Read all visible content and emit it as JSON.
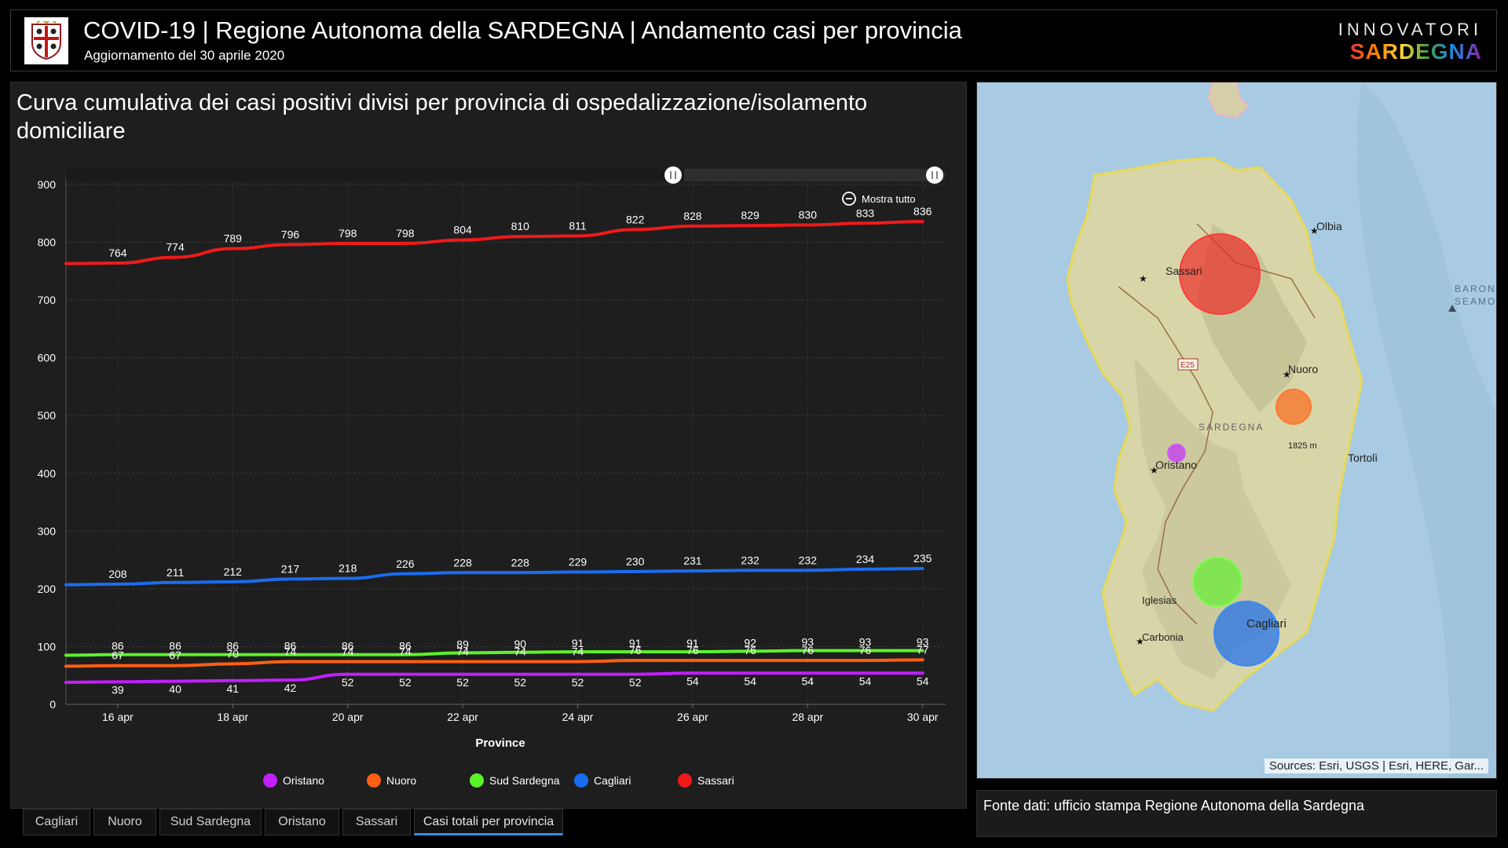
{
  "header": {
    "title": "COVID-19 | Regione Autonoma della SARDEGNA | Andamento casi per provincia",
    "subtitle": "Aggiornamento del 30 aprile 2020",
    "brand_top": "INNOVATORI",
    "brand_bottom": "SARDEGNA",
    "logo_icon": "coat-of-arms-icon"
  },
  "chart_panel": {
    "title": "Curva cumulativa dei casi positivi divisi per provincia di ospedalizzazione/isolamento domiciliare",
    "show_all_label": "Mostra tutto"
  },
  "chart_data": {
    "type": "line",
    "xlabel": "Province",
    "ylabel": "",
    "ylim": [
      0,
      900
    ],
    "yticks": [
      0,
      100,
      200,
      300,
      400,
      500,
      600,
      700,
      800,
      900
    ],
    "x_range": [
      "15 apr",
      "30 apr"
    ],
    "x": [
      "16 apr",
      "17 apr",
      "18 apr",
      "19 apr",
      "20 apr",
      "21 apr",
      "22 apr",
      "23 apr",
      "24 apr",
      "25 apr",
      "26 apr",
      "27 apr",
      "28 apr",
      "29 apr",
      "30 apr"
    ],
    "xtick_labels": [
      "16 apr",
      "18 apr",
      "20 apr",
      "22 apr",
      "24 apr",
      "26 apr",
      "28 apr",
      "30 apr"
    ],
    "grid": true,
    "legend_position": "bottom",
    "series": [
      {
        "name": "Oristano",
        "color": "#c21fff",
        "start": 38,
        "values": [
          39,
          40,
          41,
          42,
          52,
          52,
          52,
          52,
          52,
          52,
          54,
          54,
          54,
          54,
          54
        ]
      },
      {
        "name": "Nuoro",
        "color": "#ff5f13",
        "start": 66,
        "values": [
          67,
          67,
          70,
          74,
          74,
          74,
          74,
          74,
          74,
          76,
          76,
          76,
          76,
          76,
          77
        ]
      },
      {
        "name": "Sud Sardegna",
        "color": "#5bf22a",
        "start": 85,
        "values": [
          86,
          86,
          86,
          86,
          86,
          86,
          89,
          90,
          91,
          91,
          91,
          92,
          93,
          93,
          93
        ]
      },
      {
        "name": "Cagliari",
        "color": "#1a6cf0",
        "start": 207,
        "values": [
          208,
          211,
          212,
          217,
          218,
          226,
          228,
          228,
          229,
          230,
          231,
          232,
          232,
          234,
          235
        ]
      },
      {
        "name": "Sassari",
        "color": "#f01a1a",
        "start": 763,
        "values": [
          764,
          774,
          789,
          796,
          798,
          798,
          804,
          810,
          811,
          822,
          828,
          829,
          830,
          833,
          836
        ]
      }
    ]
  },
  "map": {
    "place_labels": [
      "Olbia",
      "Sassari",
      "Nuoro",
      "SARDEGNA",
      "1825 m",
      "Oristano",
      "Tortolì",
      "Iglesias",
      "Carbonia",
      "Cagliari",
      "BARON",
      "SEAMO",
      "E25"
    ],
    "attribution": "Sources: Esri, USGS | Esri, HERE, Gar..."
  },
  "source_text": "Fonte dati: ufficio stampa Regione Autonoma della Sardegna",
  "tabs": [
    {
      "label": "Cagliari",
      "active": false
    },
    {
      "label": "Nuoro",
      "active": false
    },
    {
      "label": "Sud Sardegna",
      "active": false
    },
    {
      "label": "Oristano",
      "active": false
    },
    {
      "label": "Sassari",
      "active": false
    },
    {
      "label": "Casi totali per provincia",
      "active": true
    }
  ]
}
